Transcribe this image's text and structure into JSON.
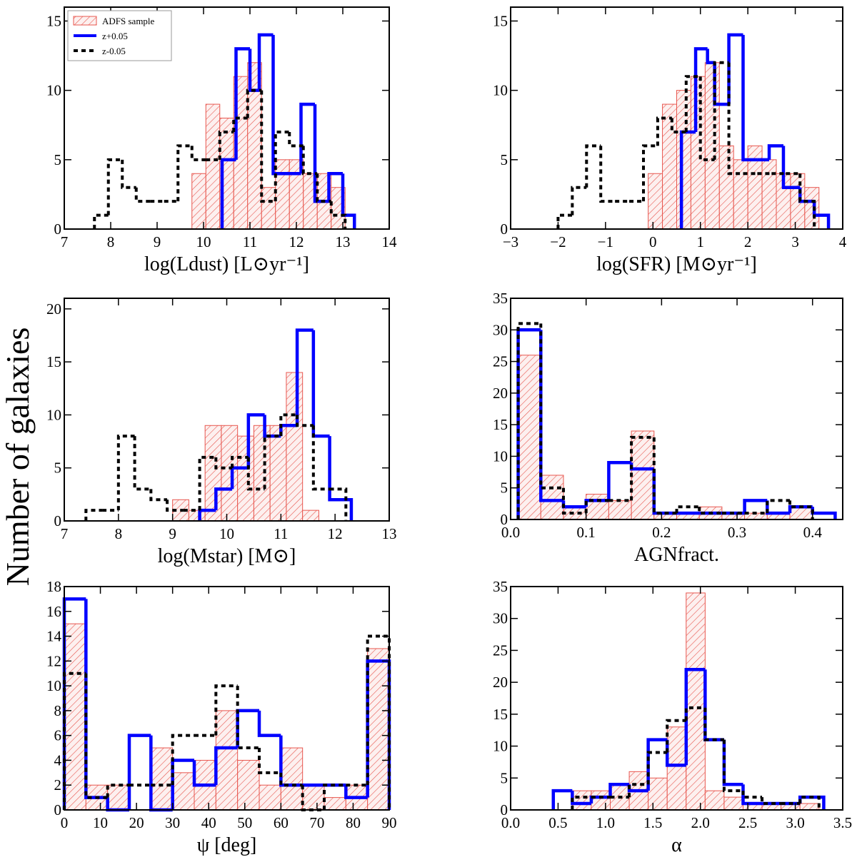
{
  "chart_data": [
    {
      "type": "histogram",
      "xlabel": "log(Ldust) [L⊙yr⁻¹]",
      "xlim": [
        7,
        14
      ],
      "ylim": [
        0,
        16
      ],
      "xticks": [
        7,
        8,
        9,
        10,
        11,
        12,
        13,
        14
      ],
      "yticks": [
        0,
        5,
        10,
        15
      ],
      "legend": "upper left",
      "series": [
        {
          "name": "ADFS sample",
          "color": "#e8574f",
          "style": "hatched",
          "bins": [
            9.75,
            10.05,
            10.35,
            10.65,
            10.95,
            11.25,
            11.55,
            11.85,
            12.15,
            12.45,
            12.75,
            13.05
          ],
          "values": [
            4,
            9,
            8,
            11,
            12,
            3,
            5,
            5,
            4,
            4,
            3
          ]
        },
        {
          "name": "z+0.05",
          "color": "#0000ff",
          "style": "solid",
          "bins": [
            10.4,
            10.7,
            11.0,
            11.2,
            11.5,
            11.8,
            12.1,
            12.4,
            12.7,
            13.0,
            13.25
          ],
          "values": [
            5,
            13,
            10,
            14,
            4,
            4,
            9,
            2,
            4,
            1
          ]
        },
        {
          "name": "z-0.05",
          "color": "#000000",
          "style": "dashed",
          "bins": [
            7.65,
            7.95,
            8.25,
            8.55,
            8.85,
            9.15,
            9.45,
            9.75,
            10.05,
            10.35,
            10.65,
            10.95,
            11.25,
            11.55,
            11.85,
            12.15,
            12.45,
            12.75,
            13.05
          ],
          "values": [
            1,
            5,
            3,
            2,
            2,
            2,
            6,
            5,
            5,
            7,
            8,
            10,
            2,
            7,
            6,
            4,
            2,
            1
          ]
        }
      ]
    },
    {
      "type": "histogram",
      "xlabel": "log(SFR) [M⊙yr⁻¹]",
      "xlim": [
        -3,
        4
      ],
      "ylim": [
        0,
        16
      ],
      "xticks": [
        {
          "value": -3,
          "label": "−3"
        },
        {
          "value": -2,
          "label": "−2"
        },
        {
          "value": -1,
          "label": "−1"
        },
        0,
        1,
        2,
        3,
        4
      ],
      "yticks": [
        0,
        5,
        10,
        15
      ],
      "series": [
        {
          "name": "ADFS sample",
          "color": "#e8574f",
          "style": "hatched",
          "bins": [
            -0.1,
            0.2,
            0.5,
            0.8,
            1.1,
            1.4,
            1.7,
            2.0,
            2.3,
            2.6,
            2.9,
            3.2,
            3.5
          ],
          "values": [
            4,
            9,
            10,
            11,
            12,
            6,
            5,
            6,
            5,
            4,
            4,
            3
          ]
        },
        {
          "name": "z+0.05",
          "color": "#0000ff",
          "style": "solid",
          "bins": [
            0.6,
            0.9,
            1.15,
            1.3,
            1.6,
            1.9,
            2.2,
            2.45,
            2.75,
            3.1,
            3.4,
            3.7
          ],
          "values": [
            7,
            13,
            12,
            9,
            14,
            5,
            5,
            6,
            3,
            2,
            1
          ]
        },
        {
          "name": "z-0.05",
          "color": "#000000",
          "style": "dashed",
          "bins": [
            -2.0,
            -1.7,
            -1.4,
            -1.1,
            -0.8,
            -0.5,
            -0.2,
            0.1,
            0.4,
            0.7,
            1.0,
            1.3,
            1.6,
            1.9,
            2.2,
            2.5,
            2.8,
            3.1,
            3.4
          ],
          "values": [
            1,
            3,
            6,
            2,
            2,
            2,
            6,
            8,
            7,
            11,
            5,
            12,
            4,
            4,
            4,
            4,
            4,
            2
          ]
        }
      ]
    },
    {
      "type": "histogram",
      "xlabel": "log(Mstar) [M⊙]",
      "xlim": [
        7,
        13
      ],
      "ylim": [
        0,
        21
      ],
      "xticks": [
        7,
        8,
        9,
        10,
        11,
        12,
        13
      ],
      "yticks": [
        0,
        5,
        10,
        15,
        20
      ],
      "series": [
        {
          "name": "ADFS sample",
          "color": "#e8574f",
          "style": "hatched",
          "bins": [
            9.0,
            9.3,
            9.6,
            9.9,
            10.2,
            10.5,
            10.8,
            11.1,
            11.4,
            11.7
          ],
          "values": [
            2,
            1,
            9,
            9,
            8,
            9,
            9,
            14,
            1
          ]
        },
        {
          "name": "z+0.05",
          "color": "#0000ff",
          "style": "solid",
          "bins": [
            9.5,
            9.8,
            10.1,
            10.4,
            10.7,
            11.0,
            11.3,
            11.6,
            11.9,
            12.3
          ],
          "values": [
            1,
            3,
            5,
            10,
            8,
            9,
            18,
            8,
            2
          ]
        },
        {
          "name": "z-0.05",
          "color": "#000000",
          "style": "dashed",
          "bins": [
            7.4,
            7.7,
            8.0,
            8.3,
            8.6,
            8.9,
            9.2,
            9.5,
            9.8,
            10.1,
            10.4,
            10.7,
            11.0,
            11.3,
            11.6,
            11.9,
            12.2
          ],
          "values": [
            1,
            1,
            8,
            3,
            2,
            1,
            1,
            6,
            5,
            6,
            3,
            8,
            10,
            9,
            3,
            3
          ]
        }
      ]
    },
    {
      "type": "histogram",
      "xlabel": "AGNfract.",
      "xlim": [
        0,
        0.44
      ],
      "ylim": [
        0,
        35
      ],
      "xticks": [
        {
          "value": 0,
          "label": "0.0"
        },
        0.1,
        0.2,
        0.3,
        0.4
      ],
      "yticks": [
        0,
        5,
        10,
        15,
        20,
        25,
        30,
        35
      ],
      "series": [
        {
          "name": "ADFS sample",
          "color": "#e8574f",
          "style": "hatched",
          "bins": [
            0.01,
            0.04,
            0.07,
            0.1,
            0.13,
            0.16,
            0.19,
            0.22,
            0.25,
            0.28,
            0.31,
            0.34,
            0.37,
            0.4
          ],
          "values": [
            26,
            7,
            2,
            4,
            3,
            14,
            1,
            1,
            2,
            1,
            1,
            1,
            2,
            2
          ]
        },
        {
          "name": "z+0.05",
          "color": "#0000ff",
          "style": "solid",
          "bins": [
            0.01,
            0.04,
            0.07,
            0.1,
            0.13,
            0.16,
            0.19,
            0.22,
            0.25,
            0.28,
            0.31,
            0.34,
            0.37,
            0.4,
            0.43
          ],
          "values": [
            30,
            3,
            2,
            3,
            9,
            8,
            1,
            1,
            1,
            1,
            3,
            1,
            2,
            1
          ]
        },
        {
          "name": "z-0.05",
          "color": "#000000",
          "style": "dashed",
          "bins": [
            0.01,
            0.04,
            0.07,
            0.1,
            0.13,
            0.16,
            0.19,
            0.22,
            0.25,
            0.28,
            0.31,
            0.34,
            0.37,
            0.4
          ],
          "values": [
            31,
            5,
            1,
            3,
            3,
            13,
            1,
            2,
            1,
            1,
            1,
            3,
            2
          ]
        }
      ]
    },
    {
      "type": "histogram",
      "xlabel": "ψ [deg]",
      "xlim": [
        0,
        90
      ],
      "ylim": [
        0,
        18
      ],
      "xticks": [
        0,
        10,
        20,
        30,
        40,
        50,
        60,
        70,
        80,
        90
      ],
      "yticks": [
        0,
        2,
        4,
        6,
        8,
        10,
        12,
        14,
        16,
        18
      ],
      "series": [
        {
          "name": "ADFS sample",
          "color": "#e8574f",
          "style": "hatched",
          "bins": [
            0,
            6,
            12,
            18,
            24,
            30,
            36,
            42,
            48,
            54,
            60,
            66,
            72,
            78,
            84,
            90
          ],
          "values": [
            15,
            2,
            2,
            0,
            5,
            3,
            4,
            8,
            4,
            2,
            5,
            2,
            1,
            2,
            13
          ]
        },
        {
          "name": "z+0.05",
          "color": "#0000ff",
          "style": "solid",
          "bins": [
            0,
            6,
            12,
            18,
            24,
            30,
            36,
            42,
            48,
            54,
            60,
            66,
            72,
            78,
            84,
            90
          ],
          "values": [
            17,
            1,
            0,
            6,
            0,
            4,
            2,
            5,
            8,
            6,
            2,
            2,
            2,
            1,
            12
          ]
        },
        {
          "name": "z-0.05",
          "color": "#000000",
          "style": "dashed",
          "bins": [
            0,
            6,
            12,
            18,
            24,
            30,
            36,
            42,
            48,
            54,
            60,
            66,
            72,
            78,
            84,
            90
          ],
          "values": [
            11,
            1,
            2,
            2,
            2,
            6,
            6,
            10,
            5,
            3,
            2,
            0,
            2,
            2,
            14
          ]
        }
      ]
    },
    {
      "type": "histogram",
      "xlabel": "α",
      "xlim": [
        0,
        3.5
      ],
      "ylim": [
        0,
        35
      ],
      "xticks": [
        {
          "value": 0,
          "label": "0.0"
        },
        0.5,
        {
          "value": 1,
          "label": "1.0"
        },
        1.5,
        {
          "value": 2,
          "label": "2.0"
        },
        2.5,
        {
          "value": 3,
          "label": "3.0"
        },
        3.5
      ],
      "yticks": [
        0,
        5,
        10,
        15,
        20,
        25,
        30,
        35
      ],
      "series": [
        {
          "name": "ADFS sample",
          "color": "#e8574f",
          "style": "hatched",
          "bins": [
            0.65,
            0.85,
            1.05,
            1.25,
            1.45,
            1.65,
            1.85,
            2.05,
            2.25,
            2.45,
            2.65,
            2.85,
            3.05,
            3.25
          ],
          "values": [
            3,
            3,
            4,
            6,
            5,
            13,
            34,
            3,
            2,
            1,
            1,
            1,
            1
          ]
        },
        {
          "name": "z+0.05",
          "color": "#0000ff",
          "style": "solid",
          "bins": [
            0.45,
            0.65,
            0.85,
            1.05,
            1.25,
            1.45,
            1.65,
            1.85,
            2.05,
            2.25,
            2.45,
            2.65,
            2.85,
            3.05,
            3.3
          ],
          "values": [
            3,
            1,
            2,
            4,
            3,
            11,
            7,
            22,
            11,
            4,
            1,
            1,
            1,
            2
          ]
        },
        {
          "name": "z-0.05",
          "color": "#000000",
          "style": "dashed",
          "bins": [
            0.65,
            0.85,
            1.05,
            1.25,
            1.45,
            1.65,
            1.85,
            2.05,
            2.25,
            2.45,
            2.65,
            2.85,
            3.05,
            3.25
          ],
          "values": [
            2,
            2,
            2,
            4,
            9,
            14,
            16,
            11,
            3,
            2,
            1,
            1,
            2
          ]
        }
      ]
    }
  ],
  "ylabel": "Number of galaxies"
}
